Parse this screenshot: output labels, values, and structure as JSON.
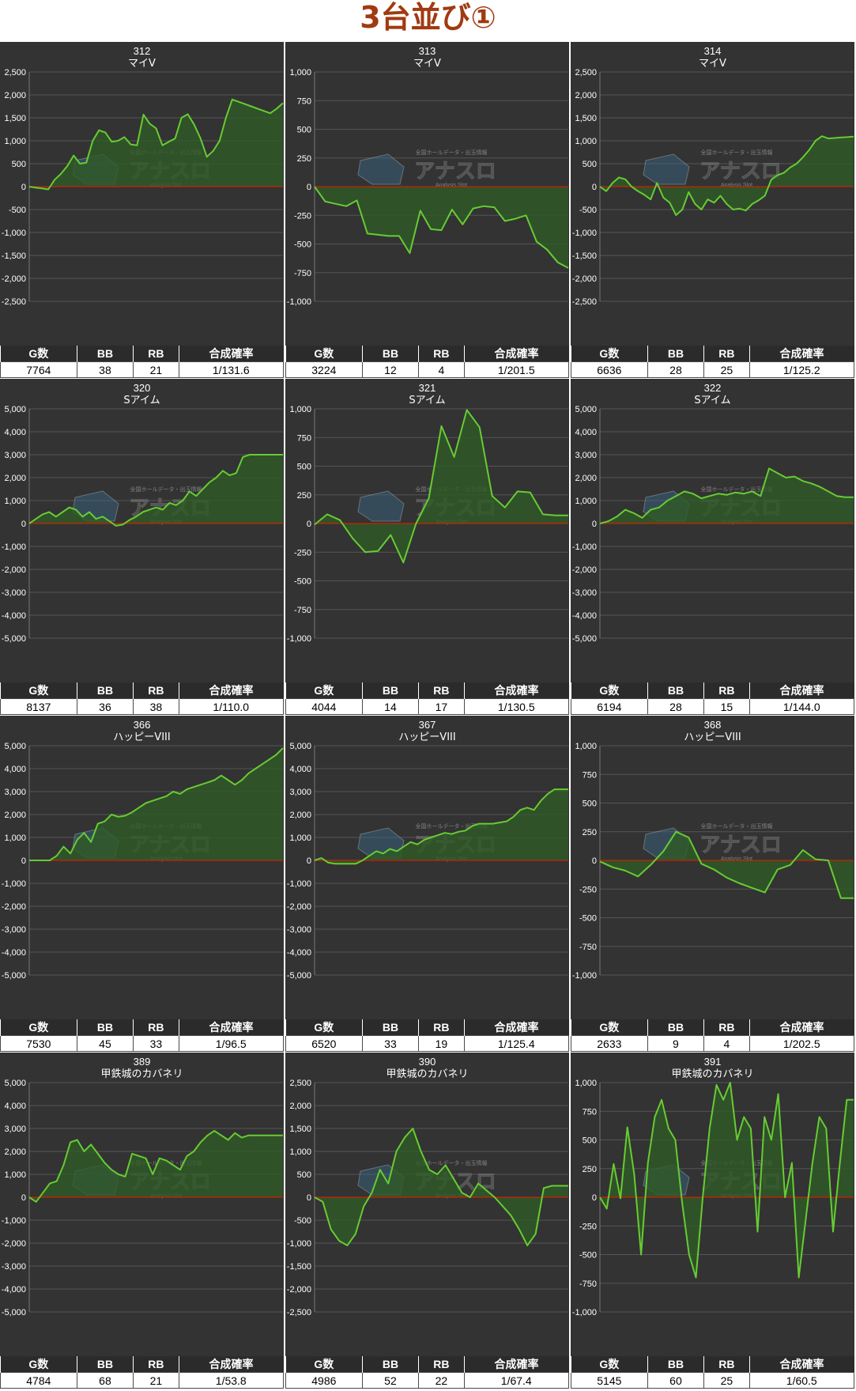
{
  "title": "3台並び①",
  "colors": {
    "panel_bg": "#333333",
    "line": "#66cc33",
    "fill": "#2f5a26",
    "zero_line": "#cc2200",
    "grid": "#555555",
    "text": "#ffffff"
  },
  "watermark": {
    "logo_text": "アナスロ",
    "tagline": "全国ホールデータ・出玉情報",
    "sub": "Analysis Slot"
  },
  "stat_headers": [
    "G数",
    "BB",
    "RB",
    "合成確率"
  ],
  "chart_data": [
    {
      "type": "line",
      "title": "312",
      "subtitle": "マイV",
      "ylim": [
        -2500,
        2500
      ],
      "yticks": [
        -2500,
        -2000,
        -1500,
        -1000,
        -500,
        0,
        500,
        1000,
        1500,
        2000,
        2500
      ],
      "x": [
        0,
        1,
        2,
        3,
        4,
        5,
        6,
        7,
        8,
        9,
        10,
        11,
        12,
        13,
        14,
        15,
        16,
        17,
        18,
        19,
        20,
        21,
        22,
        23,
        24,
        25,
        26,
        27,
        28,
        29,
        30,
        31,
        32,
        33,
        34,
        35,
        36,
        37,
        38,
        39,
        40
      ],
      "values": [
        0,
        -20,
        -40,
        -60,
        150,
        280,
        450,
        680,
        500,
        520,
        1000,
        1230,
        1180,
        980,
        1000,
        1080,
        920,
        900,
        1570,
        1370,
        1270,
        900,
        980,
        1050,
        1500,
        1580,
        1350,
        1050,
        650,
        780,
        1000,
        1500,
        1900,
        1850,
        1800,
        1750,
        1700,
        1650,
        1600,
        1700,
        1820
      ]
    },
    {
      "type": "line",
      "title": "313",
      "subtitle": "マイV",
      "ylim": [
        -1000,
        1000
      ],
      "yticks": [
        -1000,
        -750,
        -500,
        -250,
        0,
        250,
        500,
        750,
        1000
      ],
      "x": [
        0,
        1,
        2,
        3,
        4,
        5,
        6,
        7,
        8,
        9,
        10,
        11,
        12,
        13,
        14,
        15,
        16,
        17,
        18,
        19,
        20,
        21,
        22,
        23,
        24
      ],
      "values": [
        0,
        -130,
        -150,
        -170,
        -120,
        -410,
        -420,
        -430,
        -430,
        -580,
        -210,
        -370,
        -380,
        -200,
        -330,
        -190,
        -170,
        -180,
        -300,
        -280,
        -250,
        -480,
        -550,
        -660,
        -710
      ]
    },
    {
      "type": "line",
      "title": "314",
      "subtitle": "マイV",
      "ylim": [
        -2500,
        2500
      ],
      "yticks": [
        -2500,
        -2000,
        -1500,
        -1000,
        -500,
        0,
        500,
        1000,
        1500,
        2000,
        2500
      ],
      "x": [
        0,
        1,
        2,
        3,
        4,
        5,
        6,
        7,
        8,
        9,
        10,
        11,
        12,
        13,
        14,
        15,
        16,
        17,
        18,
        19,
        20,
        21,
        22,
        23,
        24,
        25,
        26,
        27,
        28,
        29,
        30,
        31,
        32,
        33,
        34,
        35,
        36,
        37,
        38,
        39,
        40
      ],
      "values": [
        0,
        -100,
        80,
        200,
        160,
        0,
        -100,
        -180,
        -280,
        80,
        -240,
        -350,
        -620,
        -500,
        -120,
        -380,
        -500,
        -280,
        -350,
        -200,
        -380,
        -500,
        -480,
        -520,
        -380,
        -300,
        -200,
        150,
        250,
        300,
        420,
        500,
        640,
        800,
        1000,
        1100,
        1050,
        1060,
        1070,
        1080,
        1090
      ]
    },
    {
      "type": "line",
      "title": "320",
      "subtitle": "Sアイム",
      "ylim": [
        -5000,
        5000
      ],
      "yticks": [
        -5000,
        -4000,
        -3000,
        -2000,
        -1000,
        0,
        1000,
        2000,
        3000,
        4000,
        5000
      ],
      "x": [
        0,
        1,
        2,
        3,
        4,
        5,
        6,
        7,
        8,
        9,
        10,
        11,
        12,
        13,
        14,
        15,
        16,
        17,
        18,
        19,
        20,
        21,
        22,
        23,
        24,
        25,
        26,
        27,
        28,
        29,
        30,
        31,
        32,
        33,
        34,
        35,
        36,
        37,
        38
      ],
      "values": [
        0,
        200,
        400,
        500,
        300,
        500,
        700,
        600,
        300,
        500,
        200,
        300,
        100,
        -100,
        -50,
        150,
        300,
        500,
        600,
        700,
        600,
        900,
        800,
        1000,
        1400,
        1200,
        1500,
        1800,
        2000,
        2300,
        2100,
        2200,
        2900,
        3000,
        3000,
        3000,
        3000,
        3000,
        3000
      ]
    },
    {
      "type": "line",
      "title": "321",
      "subtitle": "Sアイム",
      "ylim": [
        -1000,
        1000
      ],
      "yticks": [
        -1000,
        -750,
        -500,
        -250,
        0,
        250,
        500,
        750,
        1000
      ],
      "x": [
        0,
        1,
        2,
        3,
        4,
        5,
        6,
        7,
        8,
        9,
        10,
        11,
        12,
        13,
        14,
        15,
        16,
        17,
        18,
        19,
        20
      ],
      "values": [
        -10,
        80,
        30,
        -130,
        -250,
        -240,
        -100,
        -340,
        0,
        220,
        850,
        580,
        990,
        840,
        240,
        140,
        280,
        270,
        80,
        70,
        70
      ]
    },
    {
      "type": "line",
      "title": "322",
      "subtitle": "Sアイム",
      "ylim": [
        -5000,
        5000
      ],
      "yticks": [
        -5000,
        -4000,
        -3000,
        -2000,
        -1000,
        0,
        1000,
        2000,
        3000,
        4000,
        5000
      ],
      "x": [
        0,
        1,
        2,
        3,
        4,
        5,
        6,
        7,
        8,
        9,
        10,
        11,
        12,
        13,
        14,
        15,
        16,
        17,
        18,
        19,
        20,
        21,
        22,
        23,
        24,
        25,
        26,
        27,
        28,
        29,
        30
      ],
      "values": [
        0,
        100,
        300,
        600,
        450,
        250,
        600,
        700,
        1000,
        1200,
        1400,
        1300,
        1100,
        1200,
        1300,
        1250,
        1350,
        1300,
        1400,
        1200,
        2400,
        2200,
        2000,
        2050,
        1850,
        1750,
        1600,
        1400,
        1200,
        1150,
        1150
      ]
    },
    {
      "type": "line",
      "title": "366",
      "subtitle": "ハッピーVIII",
      "ylim": [
        -5000,
        5000
      ],
      "yticks": [
        -5000,
        -4000,
        -3000,
        -2000,
        -1000,
        0,
        1000,
        2000,
        3000,
        4000,
        5000
      ],
      "x": [
        0,
        1,
        2,
        3,
        4,
        5,
        6,
        7,
        8,
        9,
        10,
        11,
        12,
        13,
        14,
        15,
        16,
        17,
        18,
        19,
        20,
        21,
        22,
        23,
        24,
        25,
        26,
        27,
        28,
        29,
        30,
        31,
        32,
        33,
        34,
        35,
        36,
        37
      ],
      "values": [
        0,
        0,
        0,
        0,
        200,
        600,
        300,
        900,
        1200,
        800,
        1600,
        1700,
        2000,
        1900,
        1950,
        2100,
        2300,
        2500,
        2600,
        2700,
        2800,
        3000,
        2900,
        3100,
        3200,
        3300,
        3400,
        3500,
        3700,
        3500,
        3300,
        3500,
        3800,
        4000,
        4200,
        4400,
        4600,
        4900
      ]
    },
    {
      "type": "line",
      "title": "367",
      "subtitle": "ハッピーVIII",
      "ylim": [
        -5000,
        5000
      ],
      "yticks": [
        -5000,
        -4000,
        -3000,
        -2000,
        -1000,
        0,
        1000,
        2000,
        3000,
        4000,
        5000
      ],
      "x": [
        0,
        1,
        2,
        3,
        4,
        5,
        6,
        7,
        8,
        9,
        10,
        11,
        12,
        13,
        14,
        15,
        16,
        17,
        18,
        19,
        20,
        21,
        22,
        23,
        24,
        25,
        26,
        27,
        28,
        29,
        30,
        31,
        32,
        33,
        34,
        35,
        36,
        37
      ],
      "values": [
        0,
        100,
        -100,
        -150,
        -150,
        -150,
        -150,
        0,
        200,
        400,
        300,
        500,
        400,
        600,
        800,
        700,
        900,
        1000,
        1100,
        1200,
        1150,
        1250,
        1300,
        1500,
        1600,
        1600,
        1600,
        1650,
        1700,
        1900,
        2200,
        2300,
        2200,
        2600,
        2900,
        3100,
        3100,
        3100
      ]
    },
    {
      "type": "line",
      "title": "368",
      "subtitle": "ハッピーVIII",
      "ylim": [
        -1000,
        1000
      ],
      "yticks": [
        -1000,
        -750,
        -500,
        -250,
        0,
        250,
        500,
        750,
        1000
      ],
      "x": [
        0,
        1,
        2,
        3,
        4,
        5,
        6,
        7,
        8,
        9,
        10,
        11,
        12,
        13,
        14,
        15,
        16,
        17,
        18,
        19,
        20
      ],
      "values": [
        -10,
        -60,
        -90,
        -140,
        -40,
        80,
        250,
        200,
        -30,
        -80,
        -150,
        -200,
        -240,
        -280,
        -80,
        -40,
        90,
        10,
        0,
        -330,
        -330
      ]
    },
    {
      "type": "line",
      "title": "389",
      "subtitle": "甲鉄城のカバネリ",
      "ylim": [
        -5000,
        5000
      ],
      "yticks": [
        -5000,
        -4000,
        -3000,
        -2000,
        -1000,
        0,
        1000,
        2000,
        3000,
        4000,
        5000
      ],
      "x": [
        0,
        1,
        2,
        3,
        4,
        5,
        6,
        7,
        8,
        9,
        10,
        11,
        12,
        13,
        14,
        15,
        16,
        17,
        18,
        19,
        20,
        21,
        22,
        23,
        24,
        25,
        26,
        27,
        28,
        29,
        30,
        31,
        32,
        33,
        34,
        35,
        36,
        37
      ],
      "values": [
        0,
        -200,
        200,
        600,
        700,
        1400,
        2400,
        2500,
        2000,
        2300,
        1900,
        1500,
        1200,
        1000,
        900,
        1900,
        1800,
        1700,
        1000,
        1700,
        1600,
        1400,
        1200,
        1800,
        2000,
        2400,
        2700,
        2900,
        2700,
        2500,
        2800,
        2600,
        2700,
        2700,
        2700,
        2700,
        2700,
        2700
      ]
    },
    {
      "type": "line",
      "title": "390",
      "subtitle": "甲鉄城のカバネリ",
      "ylim": [
        -2500,
        2500
      ],
      "yticks": [
        -2500,
        -2000,
        -1500,
        -1000,
        -500,
        0,
        500,
        1000,
        1500,
        2000,
        2500
      ],
      "x": [
        0,
        1,
        2,
        3,
        4,
        5,
        6,
        7,
        8,
        9,
        10,
        11,
        12,
        13,
        14,
        15,
        16,
        17,
        18,
        19,
        20,
        21,
        22,
        23,
        24,
        25,
        26,
        27,
        28,
        29,
        30,
        31
      ],
      "values": [
        0,
        -100,
        -700,
        -950,
        -1050,
        -800,
        -200,
        100,
        600,
        300,
        1000,
        1300,
        1500,
        1000,
        600,
        500,
        700,
        400,
        100,
        0,
        300,
        150,
        0,
        -200,
        -400,
        -700,
        -1050,
        -800,
        200,
        250,
        250,
        250
      ]
    },
    {
      "type": "line",
      "title": "391",
      "subtitle": "甲鉄城のカバネリ",
      "ylim": [
        -1000,
        1000
      ],
      "yticks": [
        -1000,
        -750,
        -500,
        -250,
        0,
        250,
        500,
        750,
        1000
      ],
      "x": [
        0,
        1,
        2,
        3,
        4,
        5,
        6,
        7,
        8,
        9,
        10,
        11,
        12,
        13,
        14,
        15,
        16,
        17,
        18,
        19,
        20,
        21,
        22,
        23,
        24,
        25,
        26,
        27,
        28,
        29,
        30,
        31,
        32,
        33,
        34,
        35,
        36,
        37
      ],
      "values": [
        0,
        -100,
        290,
        -10,
        610,
        200,
        -500,
        300,
        700,
        850,
        600,
        500,
        -50,
        -500,
        -700,
        0,
        600,
        980,
        850,
        1000,
        500,
        700,
        600,
        -300,
        700,
        500,
        900,
        0,
        300,
        -700,
        -200,
        300,
        700,
        600,
        -300,
        300,
        850,
        850
      ]
    }
  ],
  "stats": [
    {
      "g": "7764",
      "bb": "38",
      "rb": "21",
      "prob": "1/131.6"
    },
    {
      "g": "3224",
      "bb": "12",
      "rb": "4",
      "prob": "1/201.5"
    },
    {
      "g": "6636",
      "bb": "28",
      "rb": "25",
      "prob": "1/125.2"
    },
    {
      "g": "8137",
      "bb": "36",
      "rb": "38",
      "prob": "1/110.0"
    },
    {
      "g": "4044",
      "bb": "14",
      "rb": "17",
      "prob": "1/130.5"
    },
    {
      "g": "6194",
      "bb": "28",
      "rb": "15",
      "prob": "1/144.0"
    },
    {
      "g": "7530",
      "bb": "45",
      "rb": "33",
      "prob": "1/96.5"
    },
    {
      "g": "6520",
      "bb": "33",
      "rb": "19",
      "prob": "1/125.4"
    },
    {
      "g": "2633",
      "bb": "9",
      "rb": "4",
      "prob": "1/202.5"
    },
    {
      "g": "4784",
      "bb": "68",
      "rb": "21",
      "prob": "1/53.8"
    },
    {
      "g": "4986",
      "bb": "52",
      "rb": "22",
      "prob": "1/67.4"
    },
    {
      "g": "5145",
      "bb": "60",
      "rb": "25",
      "prob": "1/60.5"
    }
  ]
}
